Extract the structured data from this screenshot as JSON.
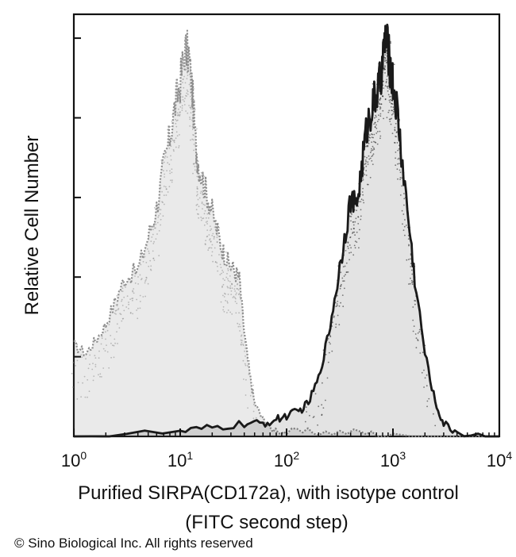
{
  "chart_data": {
    "type": "area",
    "title": "",
    "xlabel_line1": "Purified SIRPA(CD172a), with isotype control",
    "xlabel_line2": "(FITC second step)",
    "ylabel": "Relative Cell Number",
    "x_scale": "log",
    "xlim": [
      1,
      10000
    ],
    "ylim": [
      0,
      100
    ],
    "x_ticks": [
      {
        "base": "10",
        "exp": "0"
      },
      {
        "base": "10",
        "exp": "1"
      },
      {
        "base": "10",
        "exp": "2"
      },
      {
        "base": "10",
        "exp": "3"
      },
      {
        "base": "10",
        "exp": "4"
      }
    ],
    "grid": false,
    "legend": "none",
    "series": [
      {
        "role": "isotype control",
        "color": "#8c8c8c",
        "x": [
          1,
          1.3,
          1.6,
          2,
          2.5,
          3,
          4,
          5,
          6,
          7,
          8,
          9,
          10,
          11,
          12,
          13,
          14,
          15,
          17,
          19,
          22,
          25,
          28,
          32,
          36,
          40,
          45,
          50,
          60,
          70,
          100,
          200,
          500,
          1000,
          10000
        ],
        "y": [
          22,
          20,
          23,
          27,
          33,
          38,
          40,
          48,
          55,
          65,
          72,
          80,
          85,
          93,
          92,
          83,
          70,
          65,
          60,
          56,
          50,
          45,
          42,
          40,
          38,
          25,
          15,
          8,
          4,
          2,
          1,
          1,
          1,
          0,
          0
        ]
      },
      {
        "role": "SIRPA(CD172a)",
        "color": "#1a1a1a",
        "x": [
          1,
          10,
          20,
          40,
          60,
          80,
          100,
          130,
          160,
          200,
          250,
          300,
          350,
          400,
          450,
          500,
          550,
          600,
          650,
          700,
          750,
          800,
          850,
          900,
          950,
          1000,
          1100,
          1200,
          1400,
          1600,
          2000,
          2500,
          3000,
          4000,
          10000
        ],
        "y": [
          0,
          1,
          2,
          3,
          3,
          4,
          5,
          6,
          8,
          14,
          25,
          37,
          48,
          57,
          55,
          63,
          72,
          77,
          80,
          82,
          85,
          90,
          96,
          93,
          88,
          85,
          78,
          68,
          52,
          38,
          20,
          8,
          3,
          1,
          0
        ]
      }
    ]
  },
  "footer": {
    "copyright": "© Sino Biological Inc. All rights reserved"
  }
}
